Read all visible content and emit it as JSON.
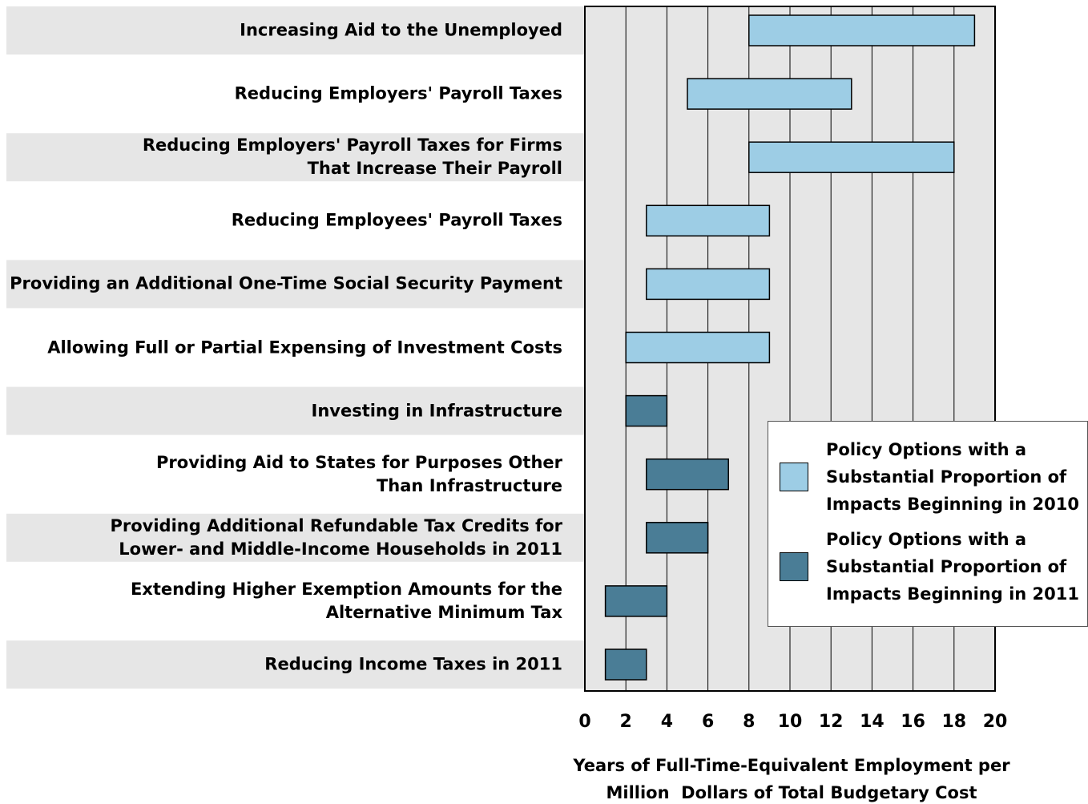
{
  "chart_data": {
    "type": "range-bar",
    "categories": [
      "Increasing Aid to the Unemployed",
      "Reducing Employers' Payroll Taxes",
      "Reducing Employers' Payroll Taxes for Firms\nThat Increase Their Payroll",
      "Reducing Employees' Payroll Taxes",
      "Providing an Additional One-Time Social Security Payment",
      "Allowing Full or Partial Expensing of Investment Costs",
      "Investing in Infrastructure",
      "Providing Aid to States for Purposes Other\nThan Infrastructure",
      "Providing Additional Refundable Tax Credits for\nLower- and Middle-Income Households in 2011",
      "Extending Higher Exemption Amounts for the\nAlternative Minimum Tax",
      "Reducing Income Taxes in 2011"
    ],
    "series": [
      {
        "name": "Policy Options with a\nSubstantial Proportion of\nImpacts Beginning in 2010",
        "color": "#9dcde5",
        "low": [
          8,
          5,
          8,
          3,
          3,
          2,
          null,
          null,
          null,
          null,
          null
        ],
        "high": [
          19,
          13,
          18,
          9,
          9,
          9,
          null,
          null,
          null,
          null,
          null
        ]
      },
      {
        "name": "Policy Options with a\nSubstantial Proportion of\nImpacts Beginning in 2011",
        "color": "#4a7d96",
        "low": [
          null,
          null,
          null,
          null,
          null,
          null,
          2,
          3,
          3,
          1,
          1
        ],
        "high": [
          null,
          null,
          null,
          null,
          null,
          null,
          4,
          7,
          6,
          4,
          3
        ]
      }
    ],
    "xlim": [
      0,
      20
    ],
    "xticks": [
      0,
      2,
      4,
      6,
      8,
      10,
      12,
      14,
      16,
      18,
      20
    ],
    "xlabel": "Years of Full-Time-Equivalent Employment per\nMillion  Dollars of Total Budgetary Cost",
    "grid": true,
    "legend": "lower-right"
  }
}
